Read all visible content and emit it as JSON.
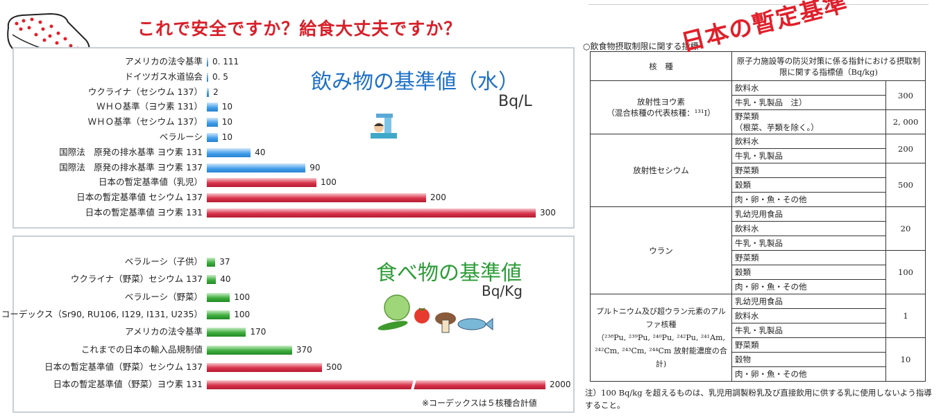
{
  "headline": "これで安全ですか？給食大丈夫ですか？",
  "stamp": "日本の暫定基準",
  "chart_data": [
    {
      "type": "bar",
      "orientation": "horizontal",
      "title": "飲み物の基準値（水）",
      "unit": "Bq/L",
      "categories": [
        "アメリカの法令基準",
        "ドイツガス水道協会",
        "ウクライナ（セシウム 137）",
        "ＷＨＯ基準（ヨウ素 131）",
        "ＷＨＯ基準（セシウム 137）",
        "ベラルーシ",
        "国際法　原発の排水基準 ヨウ素 131",
        "国際法　原発の排水基準 ヨウ素 137",
        "日本の暫定基準値（乳児）",
        "日本の暫定基準値 セシウム 137",
        "日本の暫定基準値 ヨウ素 131"
      ],
      "values": [
        0.111,
        0.5,
        2,
        10,
        10,
        10,
        40,
        90,
        100,
        200,
        300
      ],
      "value_labels": [
        "0. 111",
        "0. 5",
        "2",
        "10",
        "10",
        "10",
        "40",
        "90",
        "100",
        "200",
        "300"
      ],
      "colors": [
        "blue",
        "blue",
        "blue",
        "blue",
        "blue",
        "blue",
        "blue",
        "blue",
        "red",
        "red",
        "red"
      ],
      "xlim": [
        0,
        300
      ]
    },
    {
      "type": "bar",
      "orientation": "horizontal",
      "title": "食べ物の基準値",
      "unit": "Bq/Kg",
      "categories": [
        "ベラルーシ（子供）",
        "ウクライナ（野菜）セシウム 137",
        "ベラルーシ（野菜）",
        "コーデックス（Sr90, RU106, I129, I131, U235）",
        "アメリカの法令基準",
        "これまでの日本の輸入品規制値",
        "日本の暫定基準値（野菜）セシウム 137",
        "日本の暫定基準値（野菜）ヨウ素 131"
      ],
      "values": [
        37,
        40,
        100,
        100,
        170,
        370,
        500,
        2000
      ],
      "value_labels": [
        "37",
        "40",
        "100",
        "100",
        "170",
        "370",
        "500",
        "2000"
      ],
      "colors": [
        "green",
        "green",
        "green",
        "green",
        "green",
        "green",
        "red",
        "red"
      ],
      "note": "※コーデックスは５核種合計値",
      "axis_break": true
    }
  ],
  "table": {
    "title": "○飲食物摂取制限に関する指標",
    "header_col1": "核　種",
    "header_col2": "原子力施設等の防災対策に係る指針における摂取制限に関する指標値（Bq/kg)",
    "groups": [
      {
        "name": "放射性ヨウ素\n（混合核種の代表核種：¹³¹I）",
        "rows": [
          {
            "item": "飲料水",
            "value": "300",
            "span": 2
          },
          {
            "item": "牛乳・乳製品　注）"
          },
          {
            "item": "野菜類\n（根菜、芋類を除く。）",
            "value": "2, 000",
            "span": 1
          }
        ]
      },
      {
        "name": "放射性セシウム",
        "rows": [
          {
            "item": "飲料水",
            "value": "200",
            "span": 2
          },
          {
            "item": "牛乳・乳製品"
          },
          {
            "item": "野菜類",
            "value": "500",
            "span": 3
          },
          {
            "item": "穀類"
          },
          {
            "item": "肉・卵・魚・その他"
          }
        ]
      },
      {
        "name": "ウラン",
        "rows": [
          {
            "item": "乳幼児用食品",
            "value": "20",
            "span": 3
          },
          {
            "item": "飲料水"
          },
          {
            "item": "牛乳・乳製品"
          },
          {
            "item": "野菜類",
            "value": "100",
            "span": 3
          },
          {
            "item": "穀類"
          },
          {
            "item": "肉・卵・魚・その他"
          }
        ]
      },
      {
        "name": "プルトニウム及び超ウラン元素のアルファ核種\n（²³⁸Pu, ²³⁹Pu, ²⁴⁰Pu, ²⁴²Pu, ²⁴¹Am, ²⁴²Cm, ²⁴³Cm, ²⁴⁴Cm 放射能濃度の合計)",
        "rows": [
          {
            "item": "乳幼児用食品",
            "value": "1",
            "span": 3
          },
          {
            "item": "飲料水"
          },
          {
            "item": "牛乳・乳製品"
          },
          {
            "item": "野菜類",
            "value": "10",
            "span": 3
          },
          {
            "item": "穀物"
          },
          {
            "item": "肉・卵・魚・その他"
          }
        ]
      }
    ],
    "note": "注）100 Bq/kg を超えるものは、乳児用調製粉乳及び直接飲用に供する乳に使用しないよう指導すること。"
  }
}
